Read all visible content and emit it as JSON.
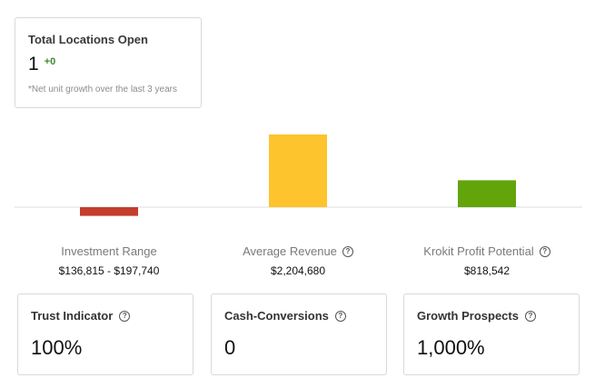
{
  "locations_card": {
    "title": "Total Locations Open",
    "count": "1",
    "delta": "+0",
    "note": "*Net unit growth over the last 3 years"
  },
  "chart_data": {
    "type": "bar",
    "categories": [
      "Investment Range",
      "Average Revenue",
      "Krokit Profit Potential"
    ],
    "values": [
      -0.12,
      1.0,
      0.37
    ],
    "colors": [
      "#c43d2e",
      "#fdc42d",
      "#63a40a"
    ],
    "baseline": 0,
    "ylim": [
      -0.2,
      1.0
    ]
  },
  "metrics": [
    {
      "label": "Investment Range",
      "value": "$136,815 - $197,740",
      "has_help": false
    },
    {
      "label": "Average Revenue",
      "value": "$2,204,680",
      "has_help": true
    },
    {
      "label": "Krokit Profit Potential",
      "value": "$818,542",
      "has_help": true
    }
  ],
  "kpis": [
    {
      "title": "Trust Indicator",
      "value": "100%"
    },
    {
      "title": "Cash-Conversions",
      "value": "0"
    },
    {
      "title": "Growth Prospects",
      "value": "1,000%"
    }
  ],
  "icons": {
    "help": "question-circle-icon",
    "help_glyph": "?"
  }
}
